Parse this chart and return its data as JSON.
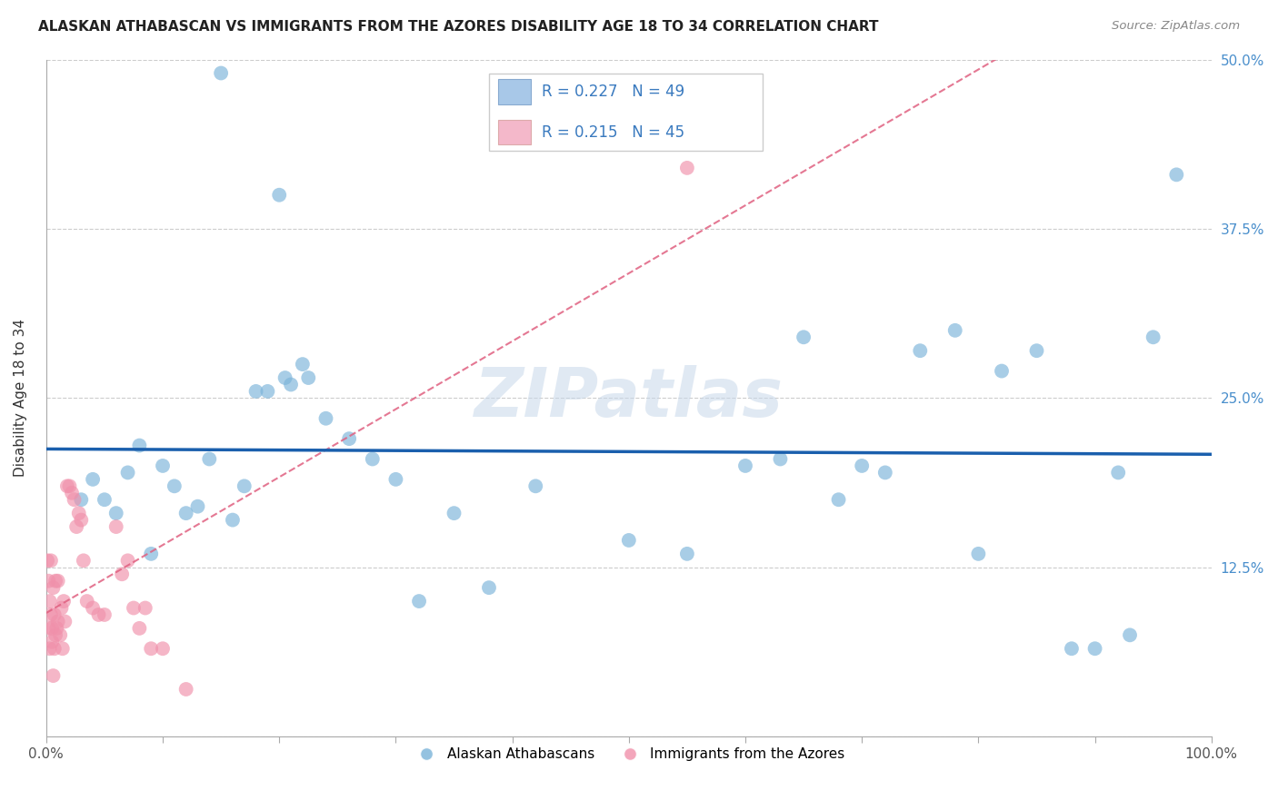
{
  "title": "ALASKAN ATHABASCAN VS IMMIGRANTS FROM THE AZORES DISABILITY AGE 18 TO 34 CORRELATION CHART",
  "source": "Source: ZipAtlas.com",
  "ylabel": "Disability Age 18 to 34",
  "xlim": [
    0,
    1.0
  ],
  "ylim": [
    0,
    0.5
  ],
  "xticks": [
    0.0,
    0.1,
    0.2,
    0.3,
    0.4,
    0.5,
    0.6,
    0.7,
    0.8,
    0.9,
    1.0
  ],
  "yticks": [
    0.0,
    0.125,
    0.25,
    0.375,
    0.5
  ],
  "yticklabels": [
    "",
    "12.5%",
    "25.0%",
    "37.5%",
    "50.0%"
  ],
  "legend_label1": "R = 0.227   N = 49",
  "legend_label2": "R = 0.215   N = 45",
  "legend_color1": "#a8c8e8",
  "legend_color2": "#f4b8ca",
  "watermark": "ZIPatlas",
  "blue_color": "#7ab3d9",
  "pink_color": "#f090aa",
  "line_blue": "#1a5fad",
  "line_pink": "#e06080",
  "blue_points_x": [
    0.15,
    0.2,
    0.205,
    0.21,
    0.22,
    0.225,
    0.28,
    0.3,
    0.35,
    0.42,
    0.5,
    0.55,
    0.6,
    0.63,
    0.65,
    0.68,
    0.7,
    0.72,
    0.75,
    0.78,
    0.8,
    0.82,
    0.85,
    0.88,
    0.9,
    0.92,
    0.93,
    0.95,
    0.97,
    0.03,
    0.04,
    0.05,
    0.06,
    0.07,
    0.08,
    0.09,
    0.1,
    0.11,
    0.12,
    0.13,
    0.14,
    0.16,
    0.17,
    0.18,
    0.19,
    0.24,
    0.26,
    0.32,
    0.38
  ],
  "blue_points_y": [
    0.49,
    0.4,
    0.265,
    0.26,
    0.275,
    0.265,
    0.205,
    0.19,
    0.165,
    0.185,
    0.145,
    0.135,
    0.2,
    0.205,
    0.295,
    0.175,
    0.2,
    0.195,
    0.285,
    0.3,
    0.135,
    0.27,
    0.285,
    0.065,
    0.065,
    0.195,
    0.075,
    0.295,
    0.415,
    0.175,
    0.19,
    0.175,
    0.165,
    0.195,
    0.215,
    0.135,
    0.2,
    0.185,
    0.165,
    0.17,
    0.205,
    0.16,
    0.185,
    0.255,
    0.255,
    0.235,
    0.22,
    0.1,
    0.11
  ],
  "pink_points_x": [
    0.001,
    0.002,
    0.002,
    0.003,
    0.003,
    0.004,
    0.004,
    0.005,
    0.005,
    0.006,
    0.006,
    0.007,
    0.007,
    0.008,
    0.008,
    0.009,
    0.01,
    0.01,
    0.012,
    0.013,
    0.014,
    0.015,
    0.016,
    0.018,
    0.02,
    0.022,
    0.024,
    0.026,
    0.028,
    0.03,
    0.032,
    0.035,
    0.04,
    0.045,
    0.05,
    0.06,
    0.065,
    0.07,
    0.075,
    0.08,
    0.085,
    0.09,
    0.1,
    0.12,
    0.55
  ],
  "pink_points_y": [
    0.13,
    0.08,
    0.115,
    0.065,
    0.1,
    0.13,
    0.09,
    0.07,
    0.08,
    0.11,
    0.045,
    0.065,
    0.09,
    0.115,
    0.075,
    0.08,
    0.085,
    0.115,
    0.075,
    0.095,
    0.065,
    0.1,
    0.085,
    0.185,
    0.185,
    0.18,
    0.175,
    0.155,
    0.165,
    0.16,
    0.13,
    0.1,
    0.095,
    0.09,
    0.09,
    0.155,
    0.12,
    0.13,
    0.095,
    0.08,
    0.095,
    0.065,
    0.065,
    0.035,
    0.42
  ]
}
